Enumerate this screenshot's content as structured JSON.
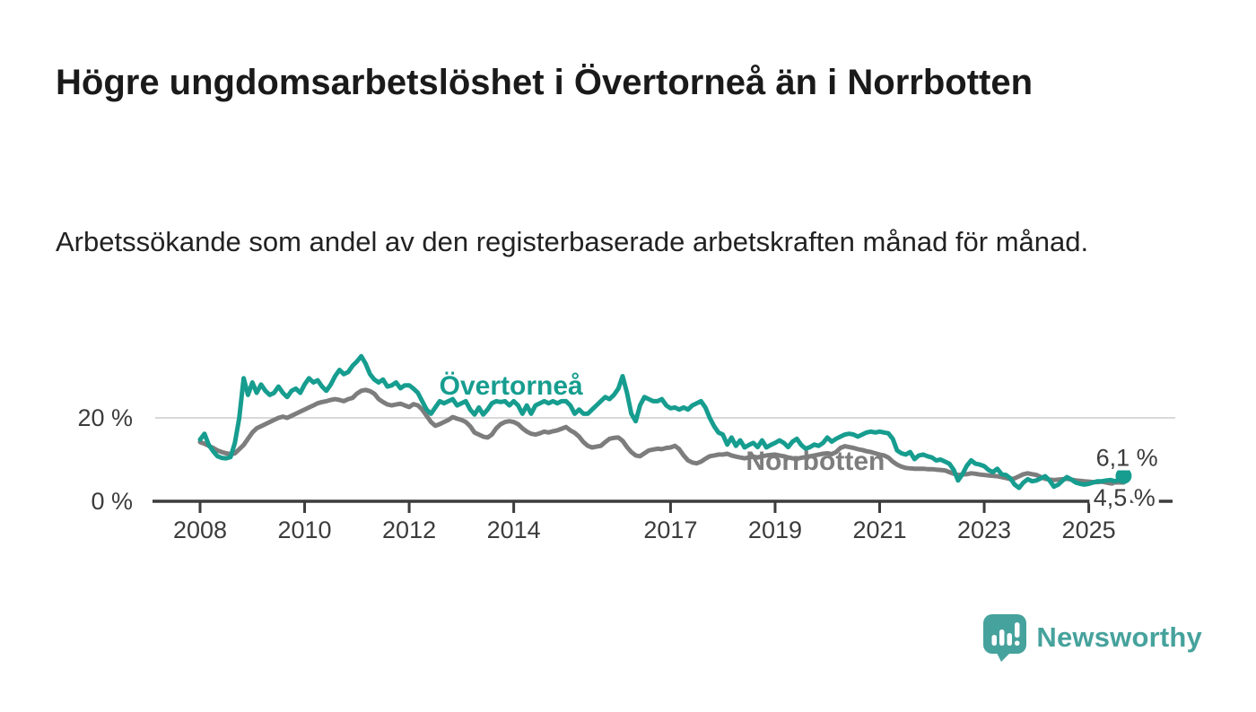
{
  "title": "Högre ungdomsarbetslöshet i Övertorneå än i Norrbotten",
  "subtitle": "Arbetssökande som andel av den registerbaserade arbetskraften månad för månad.",
  "branding": {
    "name": "Newsworthy",
    "icon": "newsworthy-speech-bubble-bar-chart",
    "color": "#46a29c"
  },
  "colors": {
    "overtornea_line": "#169d8f",
    "norrbotten_line": "#7d7d7d",
    "axis": "#3c3c3c",
    "gridline": "#d9d9d9",
    "title_text": "#1a1a1a",
    "tick_text": "#3c3c3c",
    "background": "#ffffff"
  },
  "chart_data": {
    "type": "line",
    "title": "Högre ungdomsarbetslöshet i Övertorneå än i Norrbotten",
    "xlabel": "",
    "ylabel": "Arbetssökande som andel av den registerbaserade arbetskraften",
    "x_unit": "monthly, Jan 2008 – Sep 2025",
    "x_start": 2008.0,
    "x_step": 0.0833333,
    "xlim": [
      2007.1,
      2026.5
    ],
    "ylim": [
      0,
      37
    ],
    "grid": "horizontal-20-only",
    "legend_position": "inline-labels-on-lines",
    "x_ticks": [
      "2008",
      "2010",
      "2012",
      "2014",
      "2017",
      "2019",
      "2021",
      "2023",
      "2025"
    ],
    "y_ticks": [
      {
        "value": 0,
        "label": "0 %"
      },
      {
        "value": 20,
        "label": "20 %"
      }
    ],
    "series": [
      {
        "name": "Norrbotten",
        "color": "#7d7d7d",
        "label_x": 2019.77,
        "label_y": 9.7,
        "end_label": "4,5 %",
        "end_label_x": 2025.68,
        "end_label_y": 0.9,
        "end_dot": false,
        "values": [
          14.2,
          13.8,
          13.3,
          12.8,
          12.2,
          11.8,
          11.5,
          11.3,
          11.5,
          12.5,
          13.5,
          15.0,
          16.5,
          17.5,
          18.0,
          18.5,
          19.0,
          19.5,
          20.0,
          20.3,
          20.0,
          20.5,
          21.0,
          21.5,
          22.0,
          22.5,
          23.0,
          23.5,
          23.8,
          24.0,
          24.3,
          24.5,
          24.3,
          24.0,
          24.5,
          24.8,
          25.8,
          26.5,
          26.7,
          26.4,
          25.8,
          24.5,
          23.8,
          23.2,
          23.0,
          23.2,
          23.4,
          23.0,
          22.6,
          23.3,
          23.0,
          22.0,
          20.5,
          19.0,
          18.1,
          18.5,
          19.0,
          19.5,
          20.2,
          19.8,
          19.5,
          19.0,
          18.0,
          16.5,
          16.0,
          15.5,
          15.3,
          16.0,
          17.5,
          18.5,
          19.0,
          19.2,
          19.0,
          18.5,
          17.5,
          16.7,
          16.2,
          16.0,
          16.3,
          16.7,
          16.5,
          16.8,
          17.0,
          17.4,
          17.8,
          17.0,
          16.4,
          15.5,
          14.2,
          13.3,
          12.9,
          13.1,
          13.3,
          14.2,
          15.0,
          15.2,
          15.3,
          14.5,
          13.0,
          11.8,
          11.0,
          10.8,
          11.5,
          12.2,
          12.4,
          12.6,
          12.5,
          12.8,
          12.9,
          13.3,
          12.5,
          11.0,
          9.8,
          9.3,
          9.1,
          9.5,
          10.2,
          10.8,
          11.0,
          11.2,
          11.2,
          11.4,
          11.0,
          10.7,
          10.5,
          10.3,
          10.5,
          10.7,
          10.5,
          10.8,
          11.0,
          11.1,
          11.2,
          11.0,
          10.8,
          10.5,
          10.3,
          10.2,
          10.4,
          10.6,
          10.8,
          11.0,
          11.2,
          11.4,
          11.5,
          11.3,
          11.8,
          12.8,
          13.2,
          13.0,
          12.8,
          12.5,
          12.3,
          12.0,
          11.8,
          11.5,
          11.2,
          11.0,
          10.5,
          9.5,
          8.8,
          8.3,
          8.0,
          7.9,
          7.8,
          7.8,
          7.8,
          7.7,
          7.7,
          7.6,
          7.5,
          7.4,
          7.0,
          6.6,
          6.3,
          6.4,
          6.5,
          6.7,
          6.6,
          6.4,
          6.3,
          6.2,
          6.1,
          6.0,
          5.8,
          5.6,
          5.3,
          5.5,
          6.0,
          6.5,
          6.7,
          6.5,
          6.3,
          5.8,
          5.4,
          5.2,
          5.1,
          5.2,
          5.3,
          5.4,
          5.2,
          5.0,
          4.9,
          4.8,
          4.7,
          4.6,
          4.6,
          4.7,
          4.5,
          4.3,
          4.2,
          4.3,
          4.5
        ]
      },
      {
        "name": "Övertorneå",
        "color": "#169d8f",
        "label_x": 2013.95,
        "label_y": 27.7,
        "end_label": "6,1 %",
        "end_label_x": 2025.73,
        "end_label_y": 10.4,
        "end_dot": true,
        "values": [
          14.8,
          16.2,
          13.5,
          12.0,
          10.8,
          10.4,
          10.3,
          10.6,
          14.0,
          20.0,
          29.5,
          25.5,
          28.5,
          26.0,
          28.0,
          26.5,
          25.5,
          26.0,
          27.5,
          26.0,
          25.0,
          26.5,
          27.0,
          26.0,
          28.0,
          29.5,
          28.5,
          29.0,
          27.5,
          26.5,
          28.0,
          30.0,
          31.5,
          30.5,
          31.0,
          32.5,
          33.5,
          34.8,
          33.0,
          30.5,
          29.2,
          28.5,
          29.2,
          27.5,
          27.8,
          28.5,
          27.1,
          27.8,
          27.8,
          27.0,
          26.0,
          24.0,
          22.0,
          21.0,
          22.5,
          24.0,
          23.5,
          24.0,
          24.5,
          23.0,
          23.5,
          24.0,
          22.0,
          20.8,
          22.5,
          20.8,
          22.0,
          23.5,
          24.0,
          23.8,
          24.0,
          23.0,
          24.0,
          23.0,
          21.0,
          23.0,
          21.0,
          23.0,
          23.5,
          24.0,
          23.5,
          24.0,
          23.5,
          24.0,
          24.0,
          23.0,
          21.0,
          22.0,
          21.0,
          21.0,
          22.0,
          23.0,
          24.0,
          25.0,
          24.5,
          25.5,
          27.0,
          30.0,
          26.0,
          21.0,
          19.2,
          23.0,
          25.0,
          24.5,
          24.0,
          24.0,
          24.5,
          23.0,
          22.3,
          22.5,
          22.0,
          22.5,
          22.0,
          23.0,
          23.5,
          24.0,
          22.5,
          20.0,
          18.0,
          16.5,
          16.0,
          13.6,
          15.3,
          13.3,
          14.6,
          12.9,
          13.5,
          14.0,
          13.0,
          14.6,
          12.9,
          13.5,
          14.0,
          14.6,
          14.0,
          13.0,
          14.3,
          15.0,
          13.5,
          12.6,
          13.0,
          13.6,
          13.3,
          14.0,
          15.3,
          14.3,
          15.0,
          15.5,
          16.0,
          16.2,
          16.0,
          15.5,
          16.0,
          16.5,
          16.7,
          16.5,
          16.7,
          16.5,
          16.3,
          15.0,
          12.2,
          11.5,
          11.2,
          11.8,
          10.1,
          11.0,
          11.2,
          10.8,
          10.5,
          9.8,
          10.0,
          9.5,
          9.0,
          7.5,
          5.0,
          6.5,
          8.5,
          9.8,
          9.0,
          8.8,
          8.4,
          7.5,
          7.0,
          7.8,
          6.5,
          6.3,
          5.5,
          4.0,
          3.2,
          4.5,
          5.3,
          4.8,
          5.0,
          5.5,
          6.0,
          5.0,
          3.5,
          4.0,
          5.0,
          5.8,
          5.2,
          4.5,
          4.2,
          4.0,
          4.2,
          4.5,
          4.8,
          4.8,
          5.0,
          5.1,
          4.8,
          5.2,
          6.1
        ]
      }
    ]
  }
}
